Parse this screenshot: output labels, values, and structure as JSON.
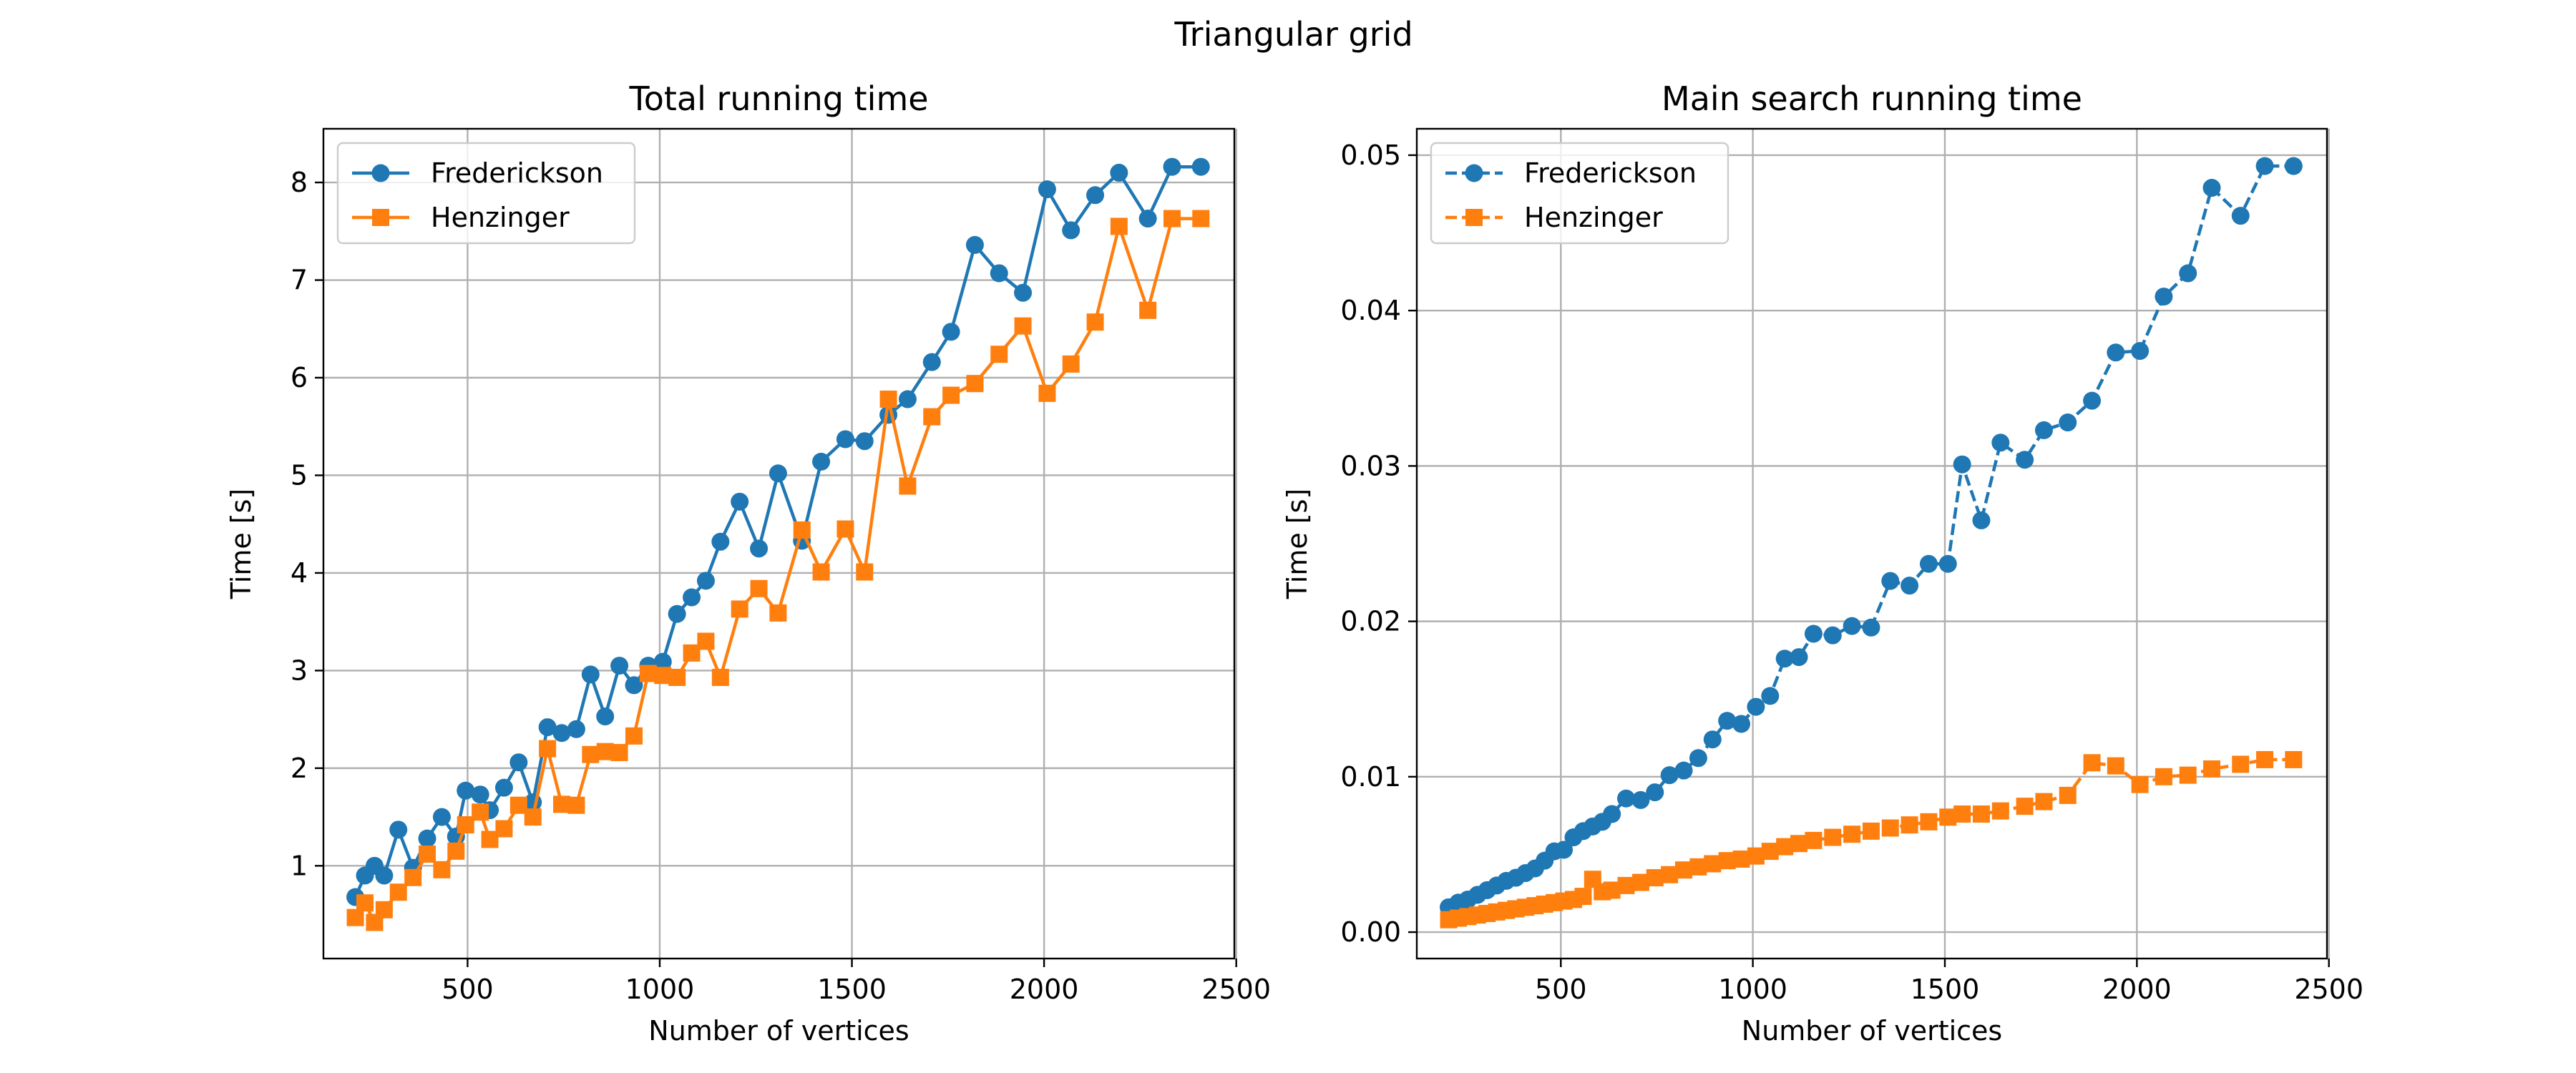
{
  "figure": {
    "suptitle": "Triangular grid"
  },
  "chart_data": [
    {
      "type": "line",
      "title": "Total running time",
      "xlabel": "Number of vertices",
      "ylabel": "Time [s]",
      "xlim": [
        125,
        2495
      ],
      "ylim": [
        0.05,
        8.55
      ],
      "xticks": [
        500,
        1000,
        1500,
        2000,
        2500
      ],
      "yticks": [
        1,
        2,
        3,
        4,
        5,
        6,
        7,
        8
      ],
      "grid": true,
      "legend": "top-left",
      "series": [
        {
          "name": "Frederickson",
          "color": "#1f77b4",
          "marker": "circle",
          "linestyle": "solid",
          "x": [
            208,
            233,
            258,
            283,
            320,
            358,
            395,
            433,
            470,
            495,
            533,
            558,
            595,
            633,
            670,
            708,
            745,
            783,
            820,
            858,
            895,
            933,
            970,
            1008,
            1045,
            1083,
            1120,
            1158,
            1208,
            1258,
            1308,
            1370,
            1420,
            1483,
            1533,
            1595,
            1645,
            1708,
            1758,
            1820,
            1883,
            1945,
            2008,
            2070,
            2133,
            2195,
            2270,
            2333,
            2408
          ],
          "y": [
            0.68,
            0.9,
            1.0,
            0.9,
            1.37,
            0.98,
            1.28,
            1.5,
            1.3,
            1.77,
            1.73,
            1.57,
            1.8,
            2.06,
            1.65,
            2.42,
            2.36,
            2.4,
            2.96,
            2.53,
            3.05,
            2.85,
            3.05,
            3.09,
            3.58,
            3.75,
            3.92,
            4.32,
            4.73,
            4.25,
            5.02,
            4.33,
            5.14,
            5.37,
            5.35,
            5.62,
            5.78,
            6.16,
            6.47,
            7.36,
            7.07,
            6.87,
            7.93,
            7.51,
            7.87,
            8.1,
            7.63,
            8.16,
            8.16
          ]
        },
        {
          "name": "Henzinger",
          "color": "#ff7f0e",
          "marker": "square",
          "linestyle": "solid",
          "x": [
            208,
            233,
            258,
            283,
            320,
            358,
            395,
            433,
            470,
            495,
            533,
            558,
            595,
            633,
            670,
            708,
            745,
            783,
            820,
            858,
            895,
            933,
            970,
            1008,
            1045,
            1083,
            1120,
            1158,
            1208,
            1258,
            1308,
            1370,
            1420,
            1483,
            1533,
            1595,
            1645,
            1708,
            1758,
            1820,
            1883,
            1945,
            2008,
            2070,
            2133,
            2195,
            2270,
            2333,
            2408
          ],
          "y": [
            0.47,
            0.62,
            0.42,
            0.55,
            0.73,
            0.88,
            1.12,
            0.96,
            1.15,
            1.42,
            1.55,
            1.27,
            1.38,
            1.62,
            1.5,
            2.2,
            1.63,
            1.62,
            2.14,
            2.17,
            2.16,
            2.33,
            2.97,
            2.95,
            2.93,
            3.18,
            3.3,
            2.93,
            3.63,
            3.84,
            3.59,
            4.44,
            4.01,
            4.45,
            4.01,
            5.78,
            4.89,
            5.6,
            5.82,
            5.94,
            6.24,
            6.53,
            5.84,
            6.14,
            6.57,
            7.55,
            6.69,
            7.63,
            7.63
          ]
        }
      ]
    },
    {
      "type": "line",
      "title": "Main search running time",
      "xlabel": "Number of vertices",
      "ylabel": "Time [s]",
      "xlim": [
        125,
        2495
      ],
      "ylim": [
        -0.0017,
        0.0517
      ],
      "xticks": [
        500,
        1000,
        1500,
        2000,
        2500
      ],
      "yticks": [
        0.0,
        0.01,
        0.02,
        0.03,
        0.04,
        0.05
      ],
      "ytick_labels": [
        "0.00",
        "0.01",
        "0.02",
        "0.03",
        "0.04",
        "0.05"
      ],
      "grid": true,
      "legend": "top-left",
      "series": [
        {
          "name": "Frederickson",
          "color": "#1f77b4",
          "marker": "circle",
          "linestyle": "dashed",
          "x": [
            208,
            233,
            258,
            283,
            308,
            333,
            358,
            383,
            408,
            433,
            458,
            483,
            508,
            533,
            558,
            583,
            608,
            633,
            670,
            708,
            745,
            783,
            820,
            858,
            895,
            933,
            970,
            1008,
            1045,
            1083,
            1120,
            1158,
            1208,
            1258,
            1308,
            1358,
            1408,
            1458,
            1508,
            1545,
            1595,
            1645,
            1708,
            1758,
            1820,
            1883,
            1945,
            2008,
            2070,
            2133,
            2195,
            2270,
            2333,
            2408
          ],
          "y": [
            0.0016,
            0.0019,
            0.0021,
            0.0024,
            0.0027,
            0.003,
            0.0033,
            0.0035,
            0.0038,
            0.0041,
            0.0046,
            0.0052,
            0.0053,
            0.0061,
            0.0065,
            0.0068,
            0.0071,
            0.0076,
            0.0086,
            0.0085,
            0.009,
            0.0101,
            0.0104,
            0.0112,
            0.0124,
            0.0136,
            0.0134,
            0.0145,
            0.0152,
            0.0176,
            0.0177,
            0.0192,
            0.0191,
            0.0197,
            0.0196,
            0.0226,
            0.0223,
            0.0237,
            0.0237,
            0.0301,
            0.0265,
            0.0315,
            0.0304,
            0.0323,
            0.0328,
            0.0342,
            0.0373,
            0.0374,
            0.0409,
            0.0424,
            0.0479,
            0.0461,
            0.0493,
            0.0493
          ]
        },
        {
          "name": "Henzinger",
          "color": "#ff7f0e",
          "marker": "square",
          "linestyle": "dashed",
          "x": [
            208,
            233,
            258,
            283,
            308,
            333,
            358,
            383,
            408,
            433,
            458,
            483,
            508,
            533,
            558,
            583,
            608,
            633,
            670,
            708,
            745,
            783,
            820,
            858,
            895,
            933,
            970,
            1008,
            1045,
            1083,
            1120,
            1158,
            1208,
            1258,
            1308,
            1358,
            1408,
            1458,
            1508,
            1545,
            1595,
            1645,
            1708,
            1758,
            1820,
            1883,
            1945,
            2008,
            2070,
            2133,
            2195,
            2270,
            2333,
            2408
          ],
          "y": [
            0.0008,
            0.0009,
            0.001,
            0.0011,
            0.0012,
            0.0013,
            0.0014,
            0.0015,
            0.0016,
            0.0017,
            0.0018,
            0.0019,
            0.002,
            0.0021,
            0.0023,
            0.0034,
            0.0026,
            0.0027,
            0.003,
            0.0032,
            0.0035,
            0.0037,
            0.004,
            0.0042,
            0.0044,
            0.0046,
            0.0047,
            0.0049,
            0.0052,
            0.0055,
            0.0057,
            0.0059,
            0.0061,
            0.0063,
            0.0065,
            0.0067,
            0.0069,
            0.0071,
            0.0074,
            0.0076,
            0.0076,
            0.0078,
            0.0081,
            0.0084,
            0.0088,
            0.0109,
            0.0107,
            0.0095,
            0.01,
            0.0101,
            0.0105,
            0.0108,
            0.0111,
            0.0111
          ]
        }
      ]
    }
  ]
}
